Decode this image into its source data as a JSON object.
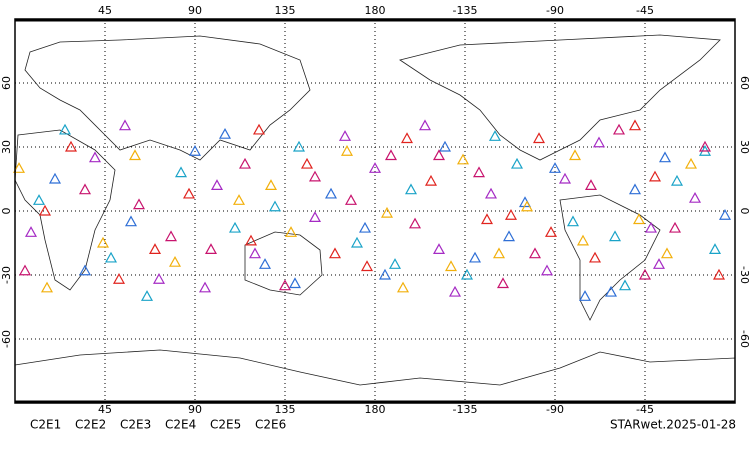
{
  "chart_data": {
    "type": "scatter",
    "footer": "STARwet.2025-01-28",
    "xlim": [
      0,
      360
    ],
    "ylim": [
      -90,
      90
    ],
    "xticks": [
      45,
      90,
      135,
      180,
      {
        "value": 225,
        "label": "-135"
      },
      {
        "value": 270,
        "label": "-90"
      },
      {
        "value": 315,
        "label": "-45"
      }
    ],
    "yticks": [
      60,
      30,
      0,
      -30,
      -60
    ],
    "grid": true,
    "series": [
      {
        "name": "C2E1",
        "color": "#1aa3c8",
        "x": [
          12,
          48,
          83,
          110,
          142,
          171,
          198,
          226,
          251,
          279,
          305,
          331,
          350,
          25,
          66,
          130,
          190,
          240,
          300,
          345
        ],
        "values": [
          5,
          -22,
          18,
          -8,
          30,
          -15,
          10,
          -30,
          22,
          -5,
          -35,
          14,
          -18,
          38,
          -40,
          2,
          -25,
          35,
          -12,
          28
        ]
      },
      {
        "name": "C2E2",
        "color": "#a52bc4",
        "x": [
          8,
          40,
          72,
          101,
          150,
          180,
          212,
          238,
          266,
          292,
          318,
          340,
          55,
          120,
          165,
          220,
          275,
          322,
          95,
          205
        ],
        "values": [
          -10,
          25,
          -32,
          12,
          -3,
          20,
          -18,
          8,
          -28,
          32,
          -8,
          6,
          40,
          -20,
          35,
          -38,
          15,
          -25,
          -36,
          40
        ]
      },
      {
        "name": "C2E3",
        "color": "#2f6fd6",
        "x": [
          20,
          58,
          90,
          125,
          158,
          185,
          215,
          247,
          270,
          298,
          325,
          355,
          35,
          105,
          175,
          255,
          310,
          140,
          230,
          285
        ],
        "values": [
          15,
          -5,
          28,
          -25,
          8,
          -30,
          30,
          -12,
          20,
          -38,
          25,
          -2,
          -28,
          36,
          -8,
          4,
          10,
          -34,
          -22,
          -40
        ]
      },
      {
        "name": "C2E4",
        "color": "#c8146e",
        "x": [
          5,
          35,
          78,
          115,
          135,
          168,
          200,
          232,
          260,
          288,
          315,
          345,
          62,
          98,
          188,
          244,
          302,
          150,
          212,
          330
        ],
        "values": [
          -28,
          10,
          -12,
          22,
          -35,
          5,
          -6,
          18,
          -20,
          12,
          -30,
          30,
          3,
          -18,
          26,
          -34,
          38,
          16,
          26,
          -8
        ]
      },
      {
        "name": "C2E5",
        "color": "#e0231e",
        "x": [
          15,
          52,
          87,
          118,
          146,
          176,
          208,
          236,
          262,
          290,
          320,
          352,
          28,
          70,
          160,
          196,
          268,
          310,
          122,
          248
        ],
        "values": [
          0,
          -32,
          8,
          -14,
          22,
          -26,
          14,
          -4,
          34,
          -22,
          16,
          -30,
          30,
          -18,
          -20,
          34,
          -10,
          40,
          38,
          -2
        ]
      },
      {
        "name": "C2E6",
        "color": "#f2b00c",
        "x": [
          2,
          44,
          80,
          112,
          138,
          166,
          194,
          224,
          256,
          284,
          312,
          338,
          16,
          60,
          128,
          218,
          280,
          326,
          186,
          242
        ],
        "values": [
          20,
          -15,
          -24,
          5,
          -10,
          28,
          -36,
          24,
          2,
          -14,
          -4,
          22,
          -36,
          26,
          12,
          -26,
          26,
          -20,
          -1,
          -20
        ]
      }
    ]
  }
}
